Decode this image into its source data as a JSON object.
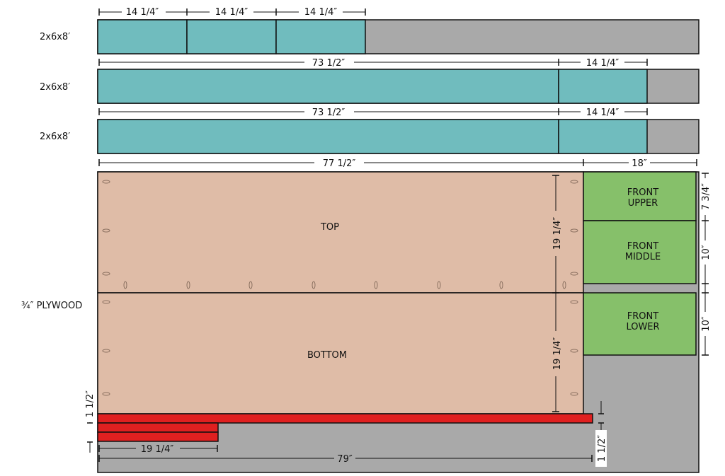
{
  "colors": {
    "board_waste": "#a9a9a9",
    "board_cut": "#70bcbe",
    "plywood_part": "#dfbca7",
    "front_part": "#86c06a",
    "strip_part": "#e02020",
    "outline": "#111111"
  },
  "boards": [
    {
      "label": "2x6x8′",
      "cuts": [
        {
          "dim": "14 1/4″"
        },
        {
          "dim": "14 1/4″"
        },
        {
          "dim": "14 1/4″"
        }
      ]
    },
    {
      "label": "2x6x8′",
      "cuts": [
        {
          "dim": "73 1/2″"
        },
        {
          "dim": "14 1/4″"
        }
      ]
    },
    {
      "label": "2x6x8′",
      "cuts": [
        {
          "dim": "73 1/2″"
        },
        {
          "dim": "14 1/4″"
        }
      ]
    }
  ],
  "plywood": {
    "label": "¾″ PLYWOOD",
    "width_dim": "77 1/2″",
    "front_width_dim": "18″",
    "parts": {
      "top": {
        "label": "TOP",
        "height_dim": "19 1/4″"
      },
      "bottom": {
        "label": "BOTTOM",
        "height_dim": "19 1/4″"
      },
      "front_upper": {
        "line1": "FRONT",
        "line2": "UPPER",
        "height_dim": "7 3/4″"
      },
      "front_middle": {
        "line1": "FRONT",
        "line2": "MIDDLE",
        "height_dim": "10″"
      },
      "front_lower": {
        "line1": "FRONT",
        "line2": "LOWER",
        "height_dim": "10″"
      }
    },
    "strips": {
      "left_dim": "1 1/2″",
      "right_dim": "1 1/2″",
      "short_length_dim": "19 1/4″",
      "long_length_dim": "79″"
    }
  }
}
